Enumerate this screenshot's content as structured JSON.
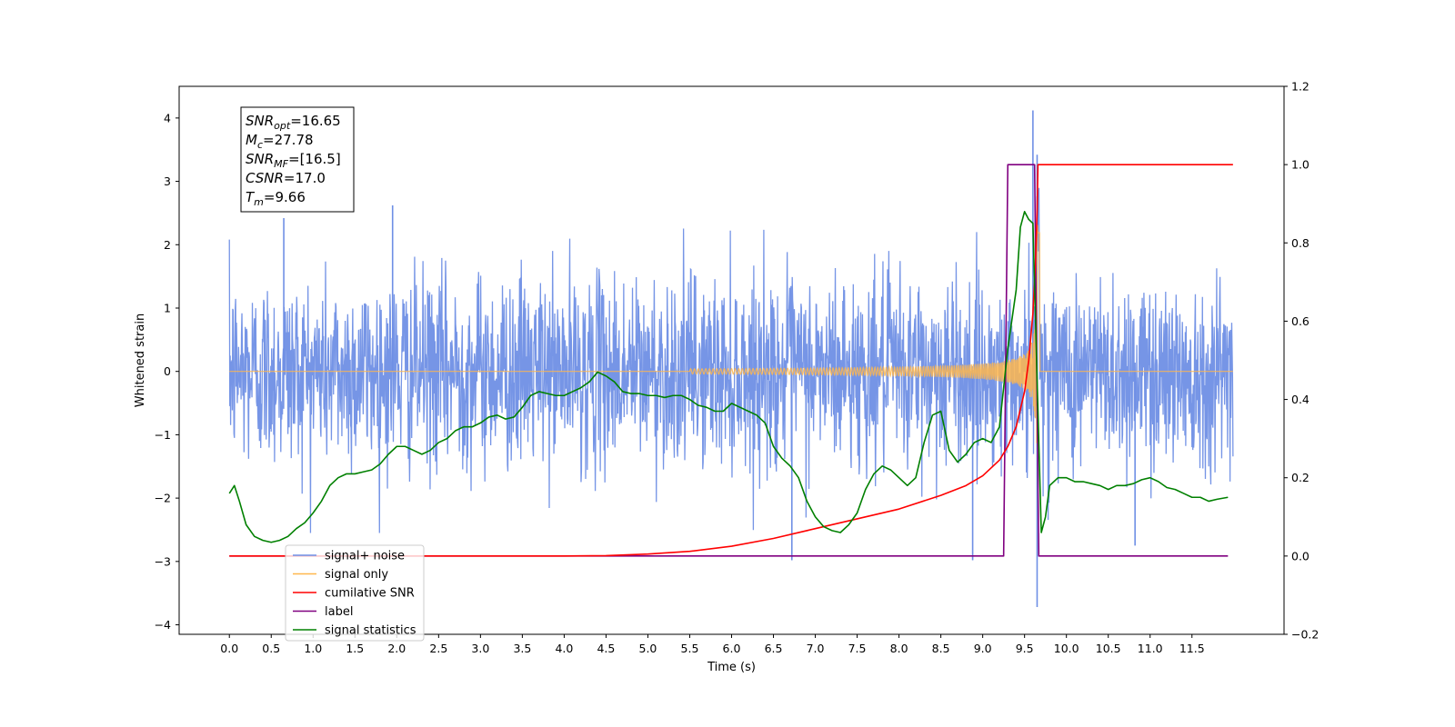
{
  "chart_data": {
    "type": "line",
    "xlabel": "Time (s)",
    "ylabel": "Whitened strain",
    "xlim": [
      -0.6,
      12.6
    ],
    "ylim": [
      -4.15,
      4.5
    ],
    "y2lim": [
      -0.2,
      1.2
    ],
    "x_ticks": [
      "0.0",
      "0.5",
      "1.0",
      "1.5",
      "2.0",
      "2.5",
      "3.0",
      "3.5",
      "4.0",
      "4.5",
      "5.0",
      "5.5",
      "6.0",
      "6.5",
      "7.0",
      "7.5",
      "8.0",
      "8.5",
      "9.0",
      "9.5",
      "10.0",
      "10.5",
      "11.0",
      "11.5"
    ],
    "y_ticks": [
      "4",
      "3",
      "2",
      "1",
      "0",
      "−1",
      "−2",
      "−3",
      "−4"
    ],
    "y2_ticks": [
      "1.2",
      "1.0",
      "0.8",
      "0.6",
      "0.4",
      "0.2",
      "0.0",
      "−0.2"
    ],
    "annotation": [
      {
        "base": "SNR",
        "sub": "opt",
        "value": "=16.65"
      },
      {
        "base": "M",
        "sub": "c",
        "value": "=27.78"
      },
      {
        "base": "SNR",
        "sub": "MF",
        "value": "=[16.5]"
      },
      {
        "base": "CSNR",
        "sub": "",
        "value": "=17.0"
      },
      {
        "base": "T",
        "sub": "m",
        "value": "=9.66"
      }
    ],
    "legend_position": "lower-left",
    "colors": {
      "noise": "#6f8fe5",
      "signal": "#ffb74d",
      "csnr": "#ff0000",
      "label": "#800080",
      "stats": "#008000"
    },
    "series": [
      {
        "name": "signal+ noise",
        "axis": "left",
        "color": "#6f8fe5",
        "description_kind": "noise",
        "amplitude_std": 0.75,
        "spikes": [
          [
            0.65,
            2.42
          ],
          [
            1.95,
            2.62
          ],
          [
            6.72,
            -2.98
          ],
          [
            8.88,
            -2.98
          ],
          [
            9.6,
            4.12
          ],
          [
            9.65,
            3.42
          ],
          [
            9.65,
            -3.72
          ],
          [
            10.82,
            -2.75
          ]
        ]
      },
      {
        "name": "signal only",
        "axis": "left",
        "color": "#ffb74d",
        "chirp": {
          "t_merge": 9.66,
          "peak": 3.0,
          "t_end": 11.99
        }
      },
      {
        "name": "cumilative SNR",
        "axis": "right",
        "x": [
          0.0,
          4.0,
          4.5,
          5.0,
          5.5,
          6.0,
          6.5,
          7.0,
          7.5,
          8.0,
          8.5,
          8.8,
          9.0,
          9.2,
          9.3,
          9.4,
          9.5,
          9.55,
          9.6,
          9.63,
          9.65,
          9.66,
          11.99
        ],
        "y": [
          0.0,
          0.0,
          0.001,
          0.005,
          0.012,
          0.025,
          0.045,
          0.07,
          0.095,
          0.12,
          0.155,
          0.18,
          0.205,
          0.245,
          0.28,
          0.33,
          0.42,
          0.5,
          0.62,
          0.75,
          0.88,
          1.0,
          1.0
        ]
      },
      {
        "name": "label",
        "axis": "right",
        "x": [
          0.0,
          9.25,
          9.3,
          9.62,
          9.67,
          11.93
        ],
        "y": [
          0.0,
          0.0,
          1.0,
          1.0,
          0.0,
          0.0
        ]
      },
      {
        "name": "signal statistics",
        "axis": "right",
        "x": [
          0.0,
          0.06,
          0.12,
          0.2,
          0.3,
          0.4,
          0.5,
          0.6,
          0.7,
          0.8,
          0.9,
          1.0,
          1.1,
          1.2,
          1.3,
          1.4,
          1.5,
          1.6,
          1.7,
          1.8,
          1.9,
          2.0,
          2.1,
          2.2,
          2.3,
          2.4,
          2.5,
          2.6,
          2.7,
          2.8,
          2.9,
          3.0,
          3.1,
          3.2,
          3.3,
          3.4,
          3.5,
          3.6,
          3.7,
          3.8,
          3.9,
          4.0,
          4.1,
          4.2,
          4.3,
          4.4,
          4.5,
          4.6,
          4.7,
          4.8,
          4.9,
          5.0,
          5.1,
          5.2,
          5.3,
          5.4,
          5.5,
          5.6,
          5.7,
          5.8,
          5.9,
          6.0,
          6.1,
          6.2,
          6.3,
          6.4,
          6.5,
          6.6,
          6.7,
          6.8,
          6.9,
          7.0,
          7.1,
          7.2,
          7.3,
          7.4,
          7.5,
          7.6,
          7.7,
          7.8,
          7.9,
          8.0,
          8.1,
          8.2,
          8.3,
          8.4,
          8.5,
          8.6,
          8.7,
          8.8,
          8.9,
          9.0,
          9.1,
          9.2,
          9.3,
          9.4,
          9.45,
          9.5,
          9.55,
          9.6,
          9.65,
          9.7,
          9.75,
          9.8,
          9.9,
          10.0,
          10.1,
          10.2,
          10.3,
          10.4,
          10.5,
          10.6,
          10.7,
          10.8,
          10.9,
          11.0,
          11.1,
          11.2,
          11.3,
          11.4,
          11.5,
          11.6,
          11.7,
          11.8,
          11.93
        ],
        "y": [
          0.16,
          0.18,
          0.14,
          0.08,
          0.05,
          0.04,
          0.035,
          0.04,
          0.05,
          0.07,
          0.085,
          0.11,
          0.14,
          0.18,
          0.2,
          0.21,
          0.21,
          0.215,
          0.22,
          0.235,
          0.26,
          0.28,
          0.28,
          0.27,
          0.26,
          0.27,
          0.29,
          0.3,
          0.32,
          0.33,
          0.33,
          0.34,
          0.355,
          0.36,
          0.35,
          0.355,
          0.38,
          0.41,
          0.42,
          0.415,
          0.41,
          0.41,
          0.42,
          0.43,
          0.445,
          0.47,
          0.46,
          0.445,
          0.42,
          0.415,
          0.415,
          0.41,
          0.41,
          0.405,
          0.41,
          0.41,
          0.4,
          0.385,
          0.38,
          0.37,
          0.37,
          0.39,
          0.38,
          0.37,
          0.36,
          0.34,
          0.28,
          0.25,
          0.23,
          0.2,
          0.14,
          0.1,
          0.075,
          0.065,
          0.06,
          0.08,
          0.11,
          0.17,
          0.21,
          0.23,
          0.22,
          0.2,
          0.18,
          0.2,
          0.29,
          0.36,
          0.37,
          0.27,
          0.24,
          0.26,
          0.29,
          0.3,
          0.29,
          0.33,
          0.53,
          0.68,
          0.84,
          0.88,
          0.86,
          0.85,
          0.45,
          0.06,
          0.1,
          0.18,
          0.2,
          0.2,
          0.19,
          0.19,
          0.185,
          0.18,
          0.17,
          0.18,
          0.18,
          0.185,
          0.195,
          0.2,
          0.19,
          0.175,
          0.17,
          0.16,
          0.15,
          0.15,
          0.14,
          0.145,
          0.15
        ]
      }
    ]
  }
}
